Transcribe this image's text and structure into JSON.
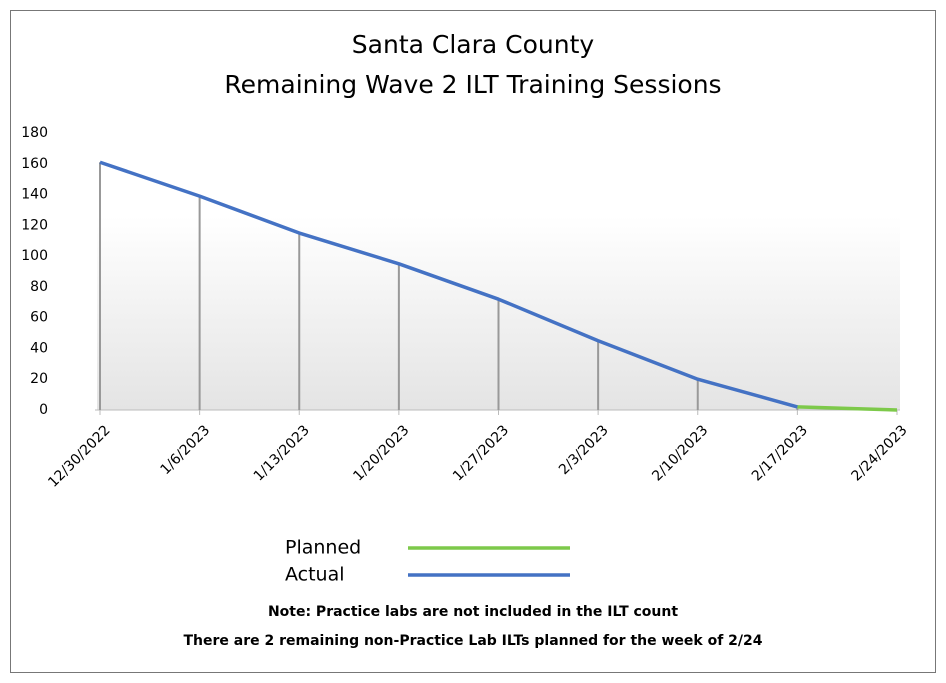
{
  "chart_data": {
    "type": "line",
    "title": "Santa Clara County",
    "subtitle": "Remaining Wave 2 ILT Training Sessions",
    "categories": [
      "12/30/2022",
      "1/6/2023",
      "1/13/2023",
      "1/20/2023",
      "1/27/2023",
      "2/3/2023",
      "2/10/2023",
      "2/17/2023",
      "2/24/2023"
    ],
    "series": [
      {
        "name": "Planned",
        "color": "#7dc94a",
        "values": [
          null,
          null,
          null,
          null,
          null,
          null,
          null,
          2,
          0
        ]
      },
      {
        "name": "Actual",
        "color": "#4472c4",
        "values": [
          161,
          139,
          115,
          95,
          72,
          45,
          20,
          2,
          null
        ]
      }
    ],
    "ylim": [
      0,
      180
    ],
    "yticks": [
      0,
      20,
      40,
      60,
      80,
      100,
      120,
      140,
      160,
      180
    ],
    "drop_lines": true,
    "annotations": [
      "Note: Practice labs are not included in the ILT count",
      "There are 2 remaining non-Practice Lab ILTs planned for the week of 2/24"
    ]
  }
}
